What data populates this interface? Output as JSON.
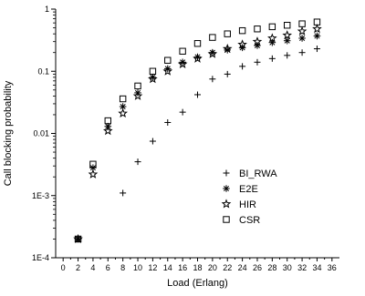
{
  "chart_data": {
    "type": "scatter",
    "xlabel": "Load (Erlang)",
    "ylabel": "Call blocking probability",
    "xlim": [
      -1,
      37
    ],
    "ylim": [
      0.0001,
      1
    ],
    "yscale": "log",
    "x_ticks": [
      0,
      2,
      4,
      6,
      8,
      10,
      12,
      14,
      16,
      18,
      20,
      22,
      24,
      26,
      28,
      30,
      32,
      34,
      36
    ],
    "x_tick_labels": [
      "0",
      "2",
      "4",
      "6",
      "8",
      "10",
      "12",
      "14",
      "16",
      "18",
      "20",
      "22",
      "24",
      "26",
      "28",
      "30",
      "32",
      "34",
      "36"
    ],
    "y_ticks": [
      0.0001,
      0.001,
      0.01,
      0.1,
      1
    ],
    "y_tick_labels": [
      "1E-4",
      "1E-3",
      "0.01",
      "0.1",
      "1"
    ],
    "grid": false,
    "legend_position": "center-right",
    "series": [
      {
        "name": "BI_RWA",
        "marker": "plus",
        "points": [
          [
            2,
            0.0002
          ],
          [
            8,
            0.0011
          ],
          [
            10,
            0.0035
          ],
          [
            12,
            0.0075
          ],
          [
            14,
            0.015
          ],
          [
            16,
            0.022
          ],
          [
            18,
            0.042
          ],
          [
            20,
            0.075
          ],
          [
            22,
            0.09
          ],
          [
            24,
            0.12
          ],
          [
            26,
            0.14
          ],
          [
            28,
            0.16
          ],
          [
            30,
            0.18
          ],
          [
            32,
            0.2
          ],
          [
            34,
            0.23
          ]
        ]
      },
      {
        "name": "E2E",
        "marker": "asterisk",
        "points": [
          [
            2,
            0.0002
          ],
          [
            4,
            0.0028
          ],
          [
            6,
            0.013
          ],
          [
            8,
            0.027
          ],
          [
            10,
            0.045
          ],
          [
            12,
            0.08
          ],
          [
            14,
            0.11
          ],
          [
            16,
            0.14
          ],
          [
            18,
            0.17
          ],
          [
            20,
            0.2
          ],
          [
            22,
            0.22
          ],
          [
            24,
            0.24
          ],
          [
            26,
            0.26
          ],
          [
            28,
            0.29
          ],
          [
            30,
            0.31
          ],
          [
            32,
            0.34
          ],
          [
            34,
            0.37
          ]
        ]
      },
      {
        "name": "HIR",
        "marker": "star",
        "points": [
          [
            2,
            0.0002
          ],
          [
            4,
            0.0022
          ],
          [
            6,
            0.011
          ],
          [
            8,
            0.021
          ],
          [
            10,
            0.04
          ],
          [
            12,
            0.075
          ],
          [
            14,
            0.1
          ],
          [
            16,
            0.13
          ],
          [
            18,
            0.16
          ],
          [
            20,
            0.19
          ],
          [
            22,
            0.23
          ],
          [
            24,
            0.27
          ],
          [
            26,
            0.3
          ],
          [
            28,
            0.34
          ],
          [
            30,
            0.38
          ],
          [
            32,
            0.44
          ],
          [
            34,
            0.48
          ]
        ]
      },
      {
        "name": "CSR",
        "marker": "square",
        "points": [
          [
            2,
            0.0002
          ],
          [
            4,
            0.0032
          ],
          [
            6,
            0.016
          ],
          [
            8,
            0.036
          ],
          [
            10,
            0.058
          ],
          [
            12,
            0.1
          ],
          [
            14,
            0.15
          ],
          [
            16,
            0.21
          ],
          [
            18,
            0.28
          ],
          [
            20,
            0.35
          ],
          [
            22,
            0.4
          ],
          [
            24,
            0.45
          ],
          [
            26,
            0.48
          ],
          [
            28,
            0.52
          ],
          [
            30,
            0.55
          ],
          [
            32,
            0.58
          ],
          [
            34,
            0.62
          ]
        ]
      }
    ]
  }
}
